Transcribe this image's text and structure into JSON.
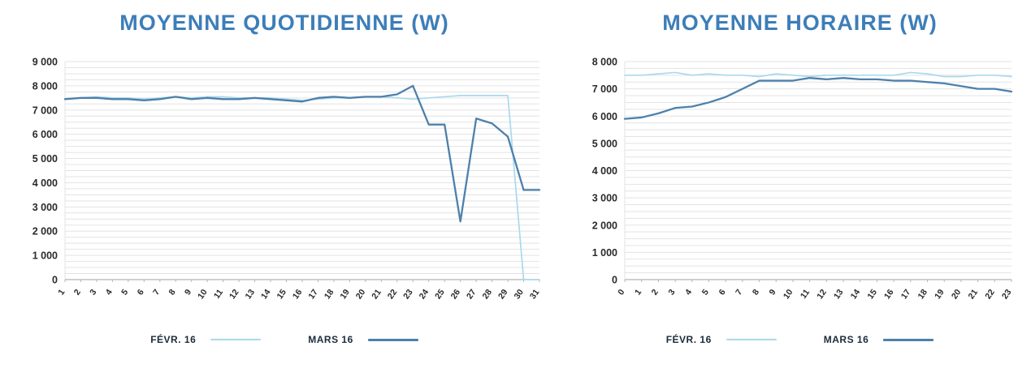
{
  "colors": {
    "title": "#3d7eb8",
    "fevr": "#a9d9ee",
    "mars": "#4d80ab",
    "grid": "#e3e3e3",
    "axis": "#b5b5b5",
    "tick": "#2a2a2a",
    "legend": "#1c2b3a"
  },
  "chart_data": [
    {
      "type": "line",
      "title": "MOYENNE QUOTIDIENNE (W)",
      "xlabel": "",
      "ylabel": "",
      "ylim": [
        0,
        9000
      ],
      "minor_gridline_step": 250,
      "grid": true,
      "legend_position": "bottom",
      "ytick_values": [
        0,
        1000,
        2000,
        3000,
        4000,
        5000,
        6000,
        7000,
        8000,
        9000
      ],
      "ytick_labels": [
        "0",
        "1 000",
        "2 000",
        "3 000",
        "4 000",
        "5 000",
        "6 000",
        "7 000",
        "8 000",
        "9 000"
      ],
      "categories": [
        "1",
        "2",
        "3",
        "4",
        "5",
        "6",
        "7",
        "8",
        "9",
        "10",
        "11",
        "12",
        "13",
        "14",
        "15",
        "16",
        "17",
        "18",
        "19",
        "20",
        "21",
        "22",
        "23",
        "24",
        "25",
        "26",
        "27",
        "28",
        "29",
        "30",
        "31"
      ],
      "series": [
        {
          "name": "FÉVR. 16",
          "color": "#a9d9ee",
          "values": [
            7450,
            7500,
            7550,
            7500,
            7500,
            7450,
            7500,
            7550,
            7500,
            7550,
            7550,
            7500,
            7500,
            7500,
            7450,
            7400,
            7450,
            7500,
            7500,
            7550,
            7550,
            7500,
            7450,
            7500,
            7550,
            7600,
            7600,
            7600,
            7600,
            0,
            0
          ]
        },
        {
          "name": "MARS 16",
          "color": "#4d80ab",
          "values": [
            7450,
            7500,
            7500,
            7450,
            7450,
            7400,
            7450,
            7550,
            7450,
            7500,
            7450,
            7450,
            7500,
            7450,
            7400,
            7350,
            7500,
            7550,
            7500,
            7550,
            7550,
            7650,
            8000,
            6400,
            6400,
            2400,
            6650,
            6450,
            5900,
            3700,
            3700
          ]
        }
      ]
    },
    {
      "type": "line",
      "title": "MOYENNE HORAIRE (W)",
      "xlabel": "",
      "ylabel": "",
      "ylim": [
        0,
        8000
      ],
      "minor_gridline_step": 250,
      "grid": true,
      "legend_position": "bottom",
      "ytick_values": [
        0,
        1000,
        2000,
        3000,
        4000,
        5000,
        6000,
        7000,
        8000
      ],
      "ytick_labels": [
        "0",
        "1 000",
        "2 000",
        "3 000",
        "4 000",
        "5 000",
        "6 000",
        "7 000",
        "8 000"
      ],
      "categories": [
        "0",
        "1",
        "2",
        "3",
        "4",
        "5",
        "6",
        "7",
        "8",
        "9",
        "10",
        "11",
        "12",
        "13",
        "14",
        "15",
        "16",
        "17",
        "18",
        "19",
        "20",
        "21",
        "22",
        "23"
      ],
      "series": [
        {
          "name": "FÉVR. 16",
          "color": "#a9d9ee",
          "values": [
            7500,
            7500,
            7550,
            7600,
            7500,
            7550,
            7500,
            7500,
            7450,
            7550,
            7500,
            7450,
            7500,
            7500,
            7500,
            7500,
            7500,
            7600,
            7550,
            7450,
            7450,
            7500,
            7500,
            7450
          ]
        },
        {
          "name": "MARS 16",
          "color": "#4d80ab",
          "values": [
            5900,
            5950,
            6100,
            6300,
            6350,
            6500,
            6700,
            7000,
            7300,
            7300,
            7300,
            7400,
            7350,
            7400,
            7350,
            7350,
            7300,
            7300,
            7250,
            7200,
            7100,
            7000,
            7000,
            6900
          ]
        }
      ]
    }
  ]
}
